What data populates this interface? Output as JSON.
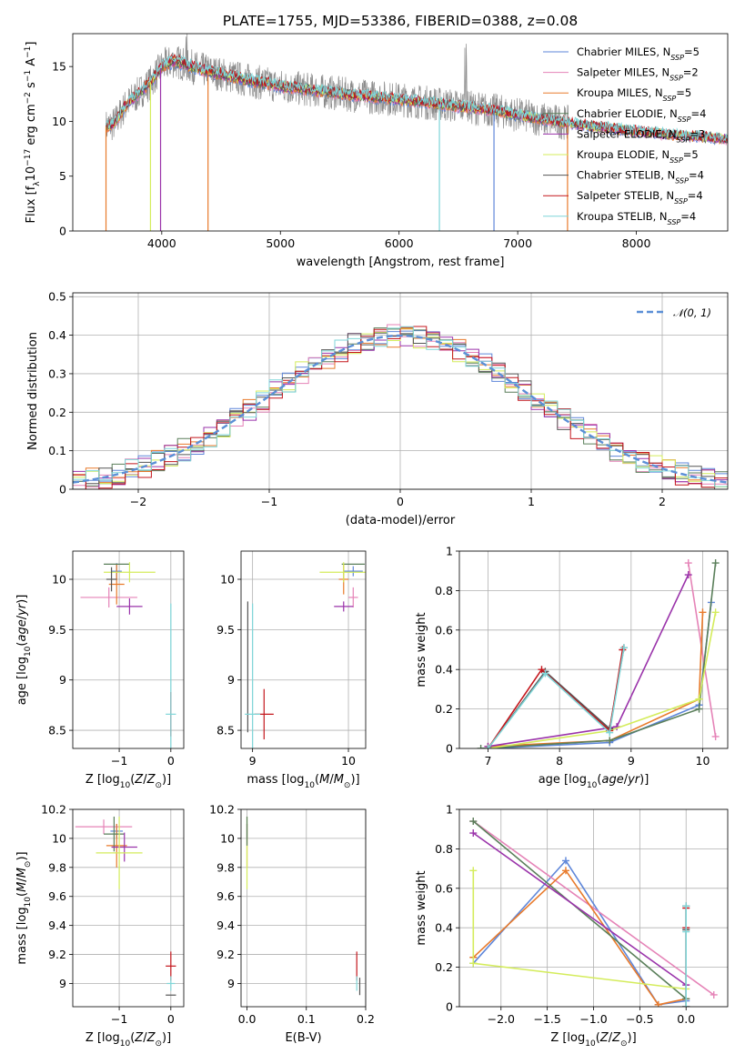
{
  "title": "PLATE=1755, MJD=53386, FIBERID=0388, z=0.08",
  "models": [
    {
      "name": "Chabrier MILES, N$_{SSP}$=5",
      "label": "Chabrier MILES, N",
      "nssp": "=5",
      "color": "#5e86d9"
    },
    {
      "name": "Salpeter MILES, N$_{SSP}$=2",
      "label": "Salpeter MILES, N",
      "nssp": "=2",
      "color": "#e583b7"
    },
    {
      "name": "Kroupa MILES, N$_{SSP}$=5",
      "label": "Kroupa MILES, N",
      "nssp": "=5",
      "color": "#e87a2b"
    },
    {
      "name": "Chabrier ELODIE, N$_{SSP}$=4",
      "label": "Chabrier ELODIE, N",
      "nssp": "=4",
      "color": "#5a7f5a"
    },
    {
      "name": "Salpeter ELODIE, N$_{SSP}$=3",
      "label": "Salpeter ELODIE, N",
      "nssp": "=3",
      "color": "#9a33aa"
    },
    {
      "name": "Kroupa ELODIE, N$_{SSP}$=5",
      "label": "Kroupa ELODIE, N",
      "nssp": "=5",
      "color": "#d4ec5b"
    },
    {
      "name": "Chabrier STELIB, N$_{SSP}$=4",
      "label": "Chabrier STELIB, N",
      "nssp": "=4",
      "color": "#555555"
    },
    {
      "name": "Salpeter STELIB, N$_{SSP}$=4",
      "label": "Salpeter STELIB, N",
      "nssp": "=4",
      "color": "#c4161c"
    },
    {
      "name": "Kroupa STELIB, N$_{SSP}$=4",
      "label": "Kroupa STELIB, N",
      "nssp": "=4",
      "color": "#7fd6d8"
    }
  ],
  "chart_data": [
    {
      "type": "line",
      "id": "spectrum",
      "xlabel": "wavelength [Angstrom, rest frame]",
      "ylabel": "Flux [f$_\\lambda$10$^{-17}$ erg cm$^{-2}$ s$^{-1}$ A$^{-1}$]",
      "xlim": [
        3250,
        8770
      ],
      "ylim": [
        0,
        18
      ],
      "xticks": [
        4000,
        5000,
        6000,
        7000,
        8000
      ],
      "yticks": [
        0,
        5,
        10,
        15
      ],
      "legend": "top-right",
      "data_flux_continuum": {
        "x": [
          3530,
          3600,
          3700,
          3800,
          3900,
          4000,
          4100,
          4200,
          4300,
          4500,
          4700,
          5000,
          5300,
          5600,
          6000,
          6400,
          6800,
          7200,
          7600,
          8000,
          8400,
          8770
        ],
        "y": [
          9.5,
          9.8,
          11.5,
          12.5,
          13.5,
          15.0,
          15.5,
          15.2,
          14.8,
          14.3,
          13.8,
          13.2,
          12.8,
          12.4,
          12.0,
          11.5,
          11.0,
          10.2,
          9.6,
          9.1,
          8.7,
          8.4
        ]
      },
      "data_end_wavelength": 7430,
      "model_end_wavelength": 8770
    },
    {
      "type": "bar",
      "id": "residual-histogram",
      "xlabel": "(data-model)/error",
      "ylabel": "Normed distribution",
      "xlim": [
        -2.5,
        2.5
      ],
      "ylim": [
        0,
        0.51
      ],
      "xticks": [
        -2,
        -1,
        0,
        1,
        2
      ],
      "yticks": [
        0.0,
        0.1,
        0.2,
        0.3,
        0.4,
        0.5
      ],
      "bin_width": 0.1,
      "reference": {
        "name": "$\\mathcal{N}(0,1)$",
        "label": "𝒩(0, 1)",
        "color": "#5b8fd6",
        "style": "dashed"
      },
      "legend": "top-right"
    },
    {
      "type": "scatter",
      "id": "age-vs-metallicity",
      "xlabel": "Z [log$_{10}$(Z/Z$_\\odot$)]",
      "ylabel": "age  [log$_{10}$(age/yr)]",
      "xlim": [
        -1.9,
        0.25
      ],
      "ylim": [
        8.32,
        10.28
      ],
      "xticks": [
        -1,
        0
      ],
      "yticks": [
        8.5,
        9.0,
        9.5,
        10.0
      ],
      "points": [
        {
          "model": 0,
          "x": -1.05,
          "y": 10.08,
          "xerr": 0.1,
          "yerr": 0.08
        },
        {
          "model": 1,
          "x": -1.2,
          "y": 9.82,
          "xerr": 0.55,
          "yerr": 0.1
        },
        {
          "model": 2,
          "x": -1.05,
          "y": 9.95,
          "xerr": 0.15,
          "yerr": 0.2
        },
        {
          "model": 3,
          "x": -1.05,
          "y": 10.15,
          "xerr": 0.25,
          "yerr": 0.0
        },
        {
          "model": 4,
          "x": -0.8,
          "y": 9.73,
          "xerr": 0.25,
          "yerr": 0.08
        },
        {
          "model": 5,
          "x": -0.8,
          "y": 10.07,
          "xerr": 0.5,
          "yerr": 0.1
        },
        {
          "model": 6,
          "x": -1.15,
          "y": 10.0,
          "xerr": 0.1,
          "yerr": 0.12
        },
        {
          "model": 7,
          "x": 0.0,
          "y": 8.66,
          "xerr": 0.0,
          "yerr": 0.22
        },
        {
          "model": 8,
          "x": 0.0,
          "y": 8.66,
          "xerr": 0.1,
          "yerr": 1.1
        }
      ]
    },
    {
      "type": "scatter",
      "id": "age-vs-mass",
      "xlabel": "mass [log$_{10}$(M/M$_\\odot$)]",
      "ylabel": "",
      "xlim": [
        8.88,
        10.18
      ],
      "ylim": [
        8.32,
        10.28
      ],
      "xticks": [
        9,
        10
      ],
      "yticks": [
        8.5,
        9.0,
        9.5,
        10.0
      ],
      "points": [
        {
          "model": 0,
          "x": 10.05,
          "y": 10.08,
          "xerr": 0.1,
          "yerr": 0.05
        },
        {
          "model": 1,
          "x": 10.05,
          "y": 9.82,
          "xerr": 0.05,
          "yerr": 0.1
        },
        {
          "model": 2,
          "x": 9.95,
          "y": 10.0,
          "xerr": 0.05,
          "yerr": 0.15
        },
        {
          "model": 3,
          "x": 10.05,
          "y": 10.15,
          "xerr": 0.12,
          "yerr": 0.0
        },
        {
          "model": 4,
          "x": 9.95,
          "y": 9.73,
          "xerr": 0.1,
          "yerr": 0.05
        },
        {
          "model": 5,
          "x": 9.95,
          "y": 10.07,
          "xerr": 0.25,
          "yerr": 0.1
        },
        {
          "model": 6,
          "x": 8.95,
          "y": 9.13,
          "xerr": 0.0,
          "yerr": 0.65
        },
        {
          "model": 7,
          "x": 9.12,
          "y": 8.66,
          "xerr": 0.1,
          "yerr": 0.25
        },
        {
          "model": 8,
          "x": 9.0,
          "y": 8.66,
          "xerr": 0.08,
          "yerr": 1.1
        }
      ]
    },
    {
      "type": "line",
      "id": "mass-weight-vs-age",
      "xlabel": "age  [log$_{10}$(age/yr)]",
      "ylabel": "mass weight",
      "xlim": [
        6.6,
        10.35
      ],
      "ylim": [
        0,
        1.0
      ],
      "xticks": [
        7,
        8,
        9,
        10
      ],
      "yticks": [
        0.0,
        0.2,
        0.4,
        0.6,
        0.8,
        1.0
      ],
      "series": [
        {
          "model": 0,
          "x": [
            7.0,
            8.7,
            9.95,
            10.12
          ],
          "y": [
            0.0,
            0.03,
            0.22,
            0.74
          ]
        },
        {
          "model": 1,
          "x": [
            9.8,
            10.18
          ],
          "y": [
            0.94,
            0.06
          ]
        },
        {
          "model": 2,
          "x": [
            7.0,
            8.7,
            9.95,
            10.0
          ],
          "y": [
            0.01,
            0.04,
            0.25,
            0.69
          ]
        },
        {
          "model": 3,
          "x": [
            6.9,
            8.7,
            9.95,
            10.18
          ],
          "y": [
            0.0,
            0.04,
            0.2,
            0.94
          ]
        },
        {
          "model": 4,
          "x": [
            7.0,
            8.8,
            9.8
          ],
          "y": [
            0.01,
            0.11,
            0.88
          ]
        },
        {
          "model": 5,
          "x": [
            7.0,
            8.7,
            9.95,
            10.18
          ],
          "y": [
            0.0,
            0.09,
            0.25,
            0.69
          ]
        },
        {
          "model": 6,
          "x": [
            7.0,
            7.8,
            8.7,
            8.9
          ],
          "y": [
            0.0,
            0.39,
            0.1,
            0.51
          ]
        },
        {
          "model": 7,
          "x": [
            7.0,
            7.75,
            8.7,
            8.88
          ],
          "y": [
            0.0,
            0.4,
            0.09,
            0.5
          ]
        },
        {
          "model": 8,
          "x": [
            7.0,
            7.8,
            8.7,
            8.9
          ],
          "y": [
            0.0,
            0.38,
            0.08,
            0.51
          ]
        }
      ]
    },
    {
      "type": "scatter",
      "id": "mass-vs-metallicity",
      "xlabel": "Z [log$_{10}$(Z/Z$_\\odot$)]",
      "ylabel": "mass [log$_{10}$(M/M$_\\odot$)]",
      "xlim": [
        -1.9,
        0.25
      ],
      "ylim": [
        8.84,
        10.2
      ],
      "xticks": [
        -1,
        0
      ],
      "yticks": [
        9.0,
        9.2,
        9.4,
        9.6,
        9.8,
        10.0,
        10.2
      ],
      "points": [
        {
          "model": 0,
          "x": -1.05,
          "y": 10.05,
          "xerr": 0.12,
          "yerr": 0.05
        },
        {
          "model": 1,
          "x": -1.3,
          "y": 10.08,
          "xerr": 0.55,
          "yerr": 0.05
        },
        {
          "model": 2,
          "x": -1.05,
          "y": 9.95,
          "xerr": 0.2,
          "yerr": 0.15
        },
        {
          "model": 3,
          "x": -1.1,
          "y": 10.03,
          "xerr": 0.2,
          "yerr": 0.12
        },
        {
          "model": 4,
          "x": -0.9,
          "y": 9.94,
          "xerr": 0.25,
          "yerr": 0.1
        },
        {
          "model": 5,
          "x": -1.0,
          "y": 9.9,
          "xerr": 0.45,
          "yerr": 0.25
        },
        {
          "model": 6,
          "x": 0.0,
          "y": 8.92,
          "xerr": 0.1,
          "yerr": 0.0
        },
        {
          "model": 7,
          "x": 0.0,
          "y": 9.12,
          "xerr": 0.1,
          "yerr": 0.1
        },
        {
          "model": 8,
          "x": 0.0,
          "y": 9.0,
          "xerr": 0.08,
          "yerr": 0.05
        }
      ]
    },
    {
      "type": "scatter",
      "id": "mass-vs-extinction",
      "xlabel": "E(B-V)",
      "ylabel": "",
      "xlim": [
        -0.01,
        0.2
      ],
      "ylim": [
        8.84,
        10.2
      ],
      "xticks": [
        0.0,
        0.1,
        0.2
      ],
      "xticklabels": [
        "0.0",
        "0.1",
        "0.2"
      ],
      "yticks": [
        9.0,
        9.2,
        9.4,
        9.6,
        9.8,
        10.0,
        10.2
      ],
      "points": [
        {
          "model": 0,
          "x": 0.0,
          "y": 10.05,
          "xerr": 0.0,
          "yerr": 0.05
        },
        {
          "model": 2,
          "x": 0.0,
          "y": 9.95,
          "xerr": 0.0,
          "yerr": 0.15
        },
        {
          "model": 5,
          "x": 0.0,
          "y": 9.9,
          "xerr": 0.0,
          "yerr": 0.25
        },
        {
          "model": 3,
          "x": 0.0,
          "y": 10.05,
          "xerr": 0.0,
          "yerr": 0.1
        },
        {
          "model": 7,
          "x": 0.185,
          "y": 9.12,
          "xerr": 0.0,
          "yerr": 0.1
        },
        {
          "model": 8,
          "x": 0.185,
          "y": 9.0,
          "xerr": 0.0,
          "yerr": 0.05
        },
        {
          "model": 6,
          "x": 0.19,
          "y": 8.98,
          "xerr": 0.0,
          "yerr": 0.06
        }
      ]
    },
    {
      "type": "line",
      "id": "mass-weight-vs-metallicity",
      "xlabel": "Z [log$_{10}$(Z/Z$_\\odot$)]",
      "ylabel": "mass weight",
      "xlim": [
        -2.45,
        0.45
      ],
      "ylim": [
        0,
        1.0
      ],
      "xticks": [
        -2.0,
        -1.5,
        -1.0,
        -0.5,
        0.0
      ],
      "xticklabels": [
        "−2.0",
        "−1.5",
        "−1.0",
        "−0.5",
        "0.0"
      ],
      "yticks": [
        0.0,
        0.2,
        0.4,
        0.6,
        0.8,
        1.0
      ],
      "series": [
        {
          "model": 0,
          "x": [
            -2.3,
            -1.3,
            -0.3,
            0.0
          ],
          "y": [
            0.22,
            0.74,
            0.01,
            0.03
          ]
        },
        {
          "model": 1,
          "x": [
            -2.3,
            0.3
          ],
          "y": [
            0.94,
            0.06
          ]
        },
        {
          "model": 2,
          "x": [
            -2.3,
            -1.3,
            -0.3,
            0.0
          ],
          "y": [
            0.25,
            0.69,
            0.01,
            0.04
          ]
        },
        {
          "model": 3,
          "x": [
            -2.3,
            0.0
          ],
          "y": [
            0.94,
            0.04
          ]
        },
        {
          "model": 4,
          "x": [
            -2.3,
            0.0
          ],
          "y": [
            0.88,
            0.11
          ]
        },
        {
          "model": 5,
          "x": [
            -2.3,
            -2.3,
            0.0
          ],
          "y": [
            0.69,
            0.22,
            0.09
          ]
        },
        {
          "model": 6,
          "x": [
            0.0,
            0.0,
            0.0
          ],
          "y": [
            0.0,
            0.39,
            0.51
          ]
        },
        {
          "model": 7,
          "x": [
            0.0,
            0.0,
            0.0
          ],
          "y": [
            0.0,
            0.4,
            0.5
          ]
        },
        {
          "model": 8,
          "x": [
            0.0,
            0.0,
            0.0
          ],
          "y": [
            0.0,
            0.38,
            0.51
          ]
        }
      ]
    }
  ]
}
